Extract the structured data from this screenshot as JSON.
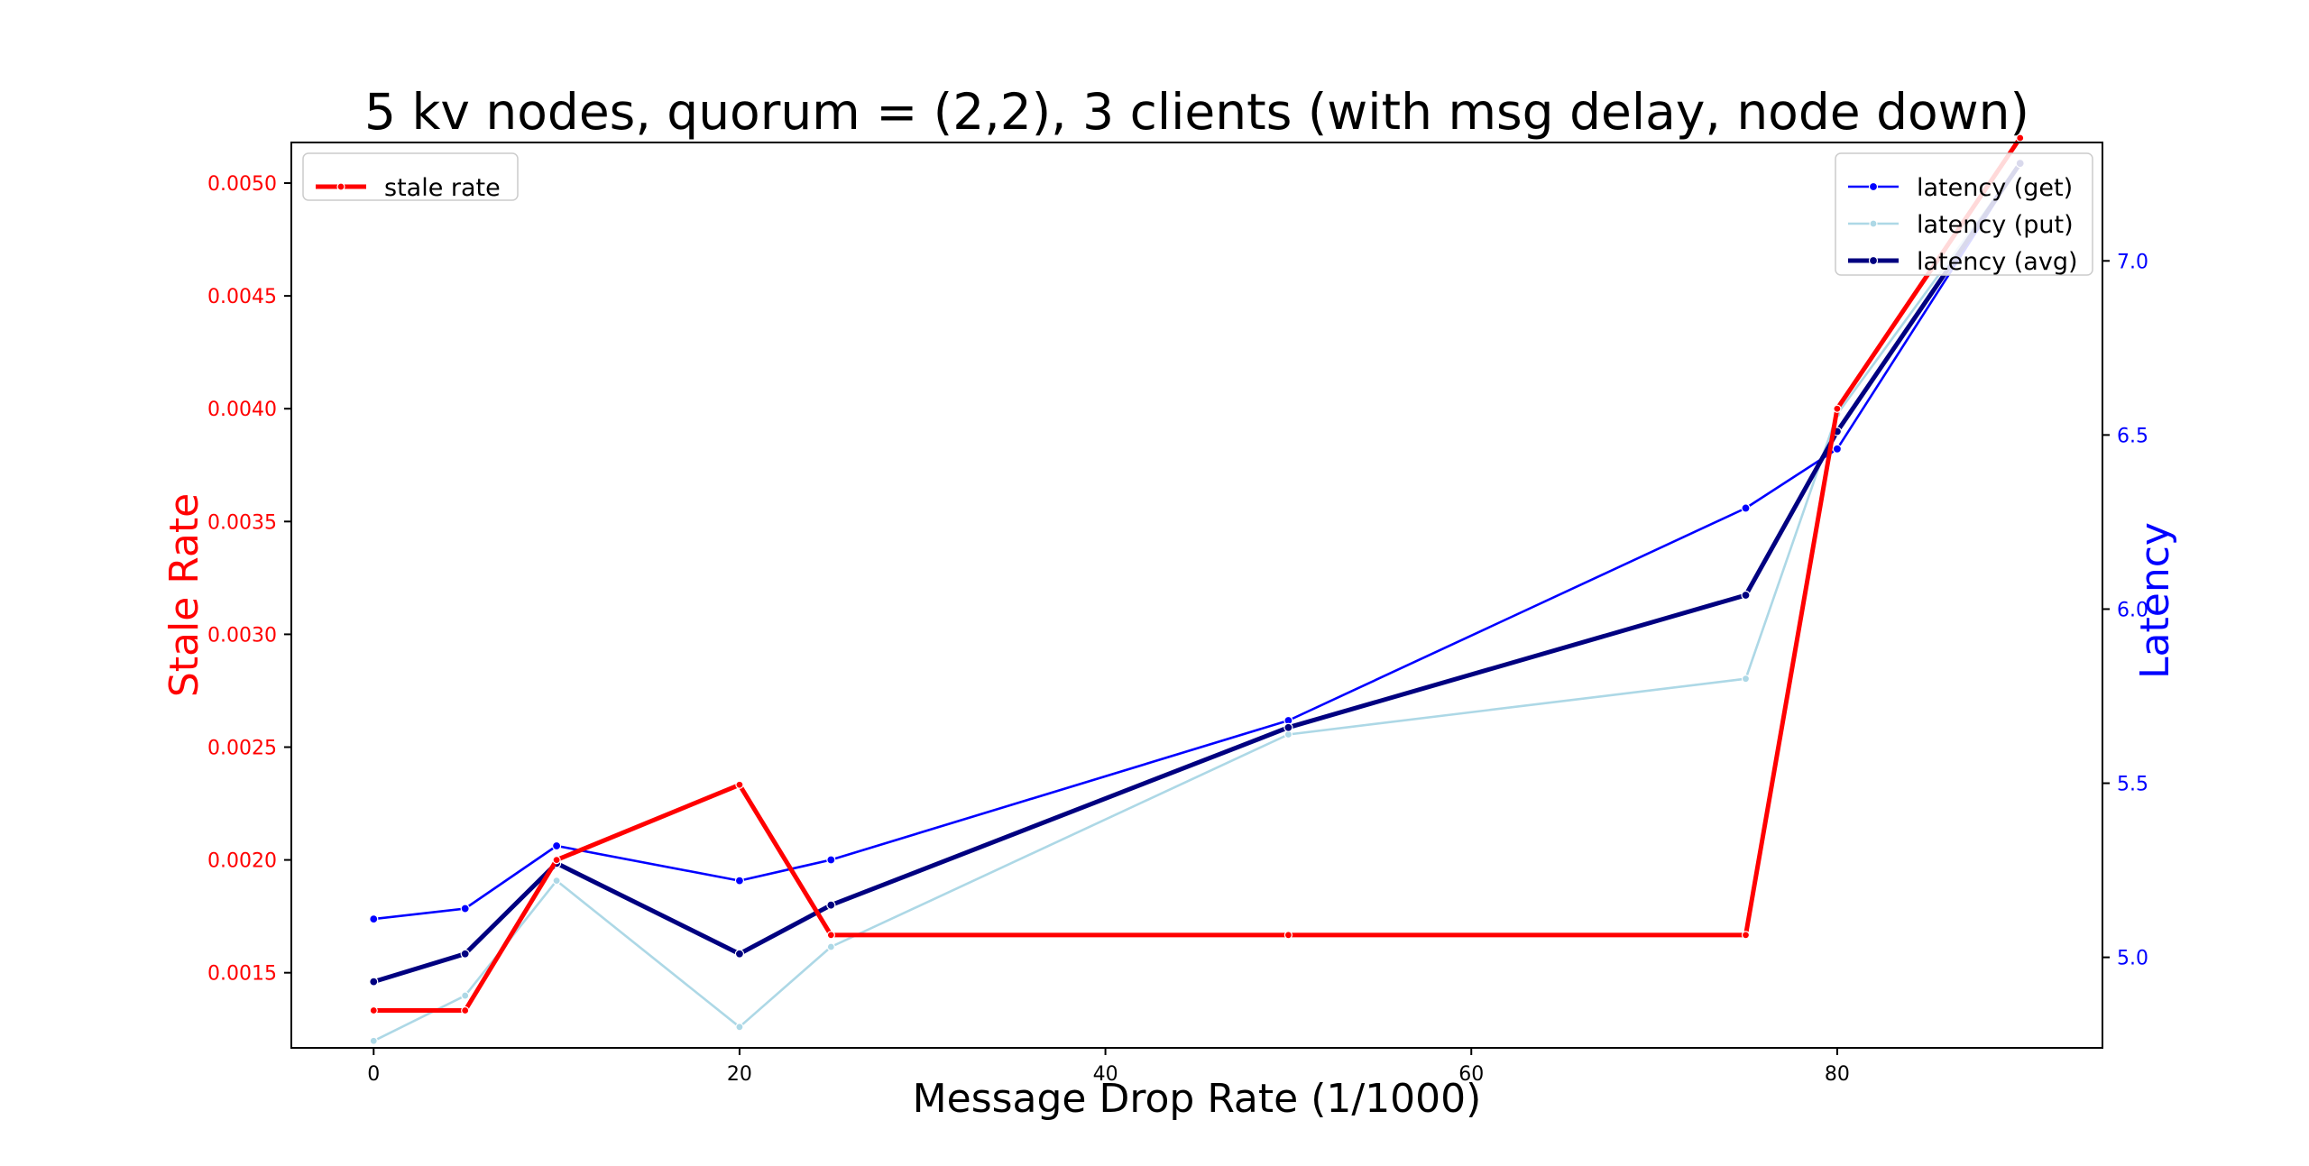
{
  "chart_data": {
    "type": "line",
    "title": "5 kv nodes, quorum = (2,2), 3 clients (with msg delay, node down)",
    "xlabel": "Message Drop Rate (1/1000)",
    "ylabel_left": "Stale Rate",
    "ylabel_right": "Latency",
    "x": [
      0,
      5,
      10,
      20,
      25,
      50,
      75,
      80,
      90
    ],
    "xlim": [
      -4.5,
      94.5
    ],
    "ylim_left": [
      0.001167,
      0.00518
    ],
    "ylim_right": [
      4.74,
      7.34
    ],
    "x_ticks": [
      0,
      20,
      40,
      60,
      80
    ],
    "x_tick_labels": [
      "0",
      "20",
      "40",
      "60",
      "80"
    ],
    "y_left_ticks": [
      0.0015,
      0.002,
      0.0025,
      0.003,
      0.0035,
      0.004,
      0.0045,
      0.005
    ],
    "y_left_tick_labels": [
      "0.0015",
      "0.0020",
      "0.0025",
      "0.0030",
      "0.0035",
      "0.0040",
      "0.0045",
      "0.0050"
    ],
    "y_right_ticks": [
      5.0,
      5.5,
      6.0,
      6.5,
      7.0
    ],
    "y_right_tick_labels": [
      "5.0",
      "5.5",
      "6.0",
      "6.5",
      "7.0"
    ],
    "grid": false,
    "colors": {
      "left_axis": "#ff0000",
      "right_axis": "#0000ff",
      "text": "#000000"
    },
    "series": [
      {
        "name": "stale rate",
        "axis": "left",
        "color": "#ff0000",
        "values": [
          0.001333,
          0.001333,
          0.002,
          0.002333,
          0.001667,
          0.001667,
          0.001667,
          0.004,
          0.0052
        ]
      },
      {
        "name": "latency (get)",
        "axis": "right",
        "color": "#0000ff",
        "values": [
          5.11,
          5.14,
          5.32,
          5.22,
          5.28,
          5.68,
          6.29,
          6.46,
          7.28
        ]
      },
      {
        "name": "latency (put)",
        "axis": "right",
        "color": "#add8e6",
        "values": [
          4.76,
          4.89,
          5.22,
          4.8,
          5.03,
          5.64,
          5.8,
          6.56,
          7.28
        ]
      },
      {
        "name": "latency (avg)",
        "axis": "right",
        "color": "#000080",
        "values": [
          4.93,
          5.01,
          5.27,
          5.01,
          5.15,
          5.66,
          6.04,
          6.51,
          7.28
        ]
      }
    ],
    "legends": [
      {
        "location": "upper-left",
        "entries": [
          "stale rate"
        ]
      },
      {
        "location": "upper-right",
        "entries": [
          "latency (get)",
          "latency (put)",
          "latency (avg)"
        ]
      }
    ]
  }
}
